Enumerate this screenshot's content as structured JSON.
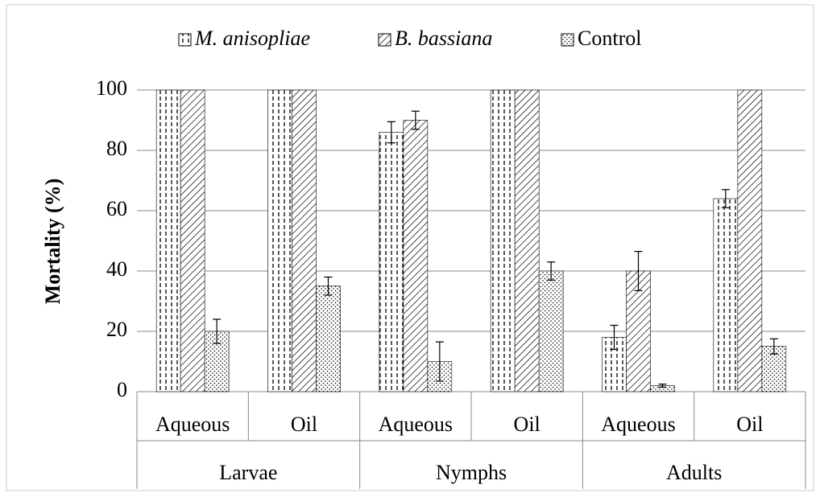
{
  "chart_data": {
    "type": "bar",
    "y_label": "Mortality (%)",
    "categories": [
      "Aqueous",
      "Oil",
      "Aqueous",
      "Oil",
      "Aqueous",
      "Oil"
    ],
    "groups": [
      "Larvae",
      "Nymphs",
      "Adults"
    ],
    "series": [
      {
        "name": "M. anisopliae",
        "color": "#000000",
        "pattern": "vertical-dash",
        "italic": true,
        "values": [
          100,
          100,
          86,
          100,
          18,
          64
        ],
        "errors": [
          null,
          null,
          3.5,
          null,
          4,
          3
        ]
      },
      {
        "name": "B. bassiana",
        "color": "#000000",
        "pattern": "diagonal",
        "italic": true,
        "values": [
          100,
          100,
          90,
          100,
          40,
          100
        ],
        "errors": [
          null,
          null,
          3,
          null,
          6.5,
          null
        ]
      },
      {
        "name": "Control",
        "color": "#000000",
        "pattern": "dots",
        "italic": false,
        "values": [
          20,
          35,
          10,
          40,
          2,
          15
        ],
        "errors": [
          4,
          3,
          6.5,
          3,
          0.5,
          2.5
        ]
      }
    ],
    "ylim": [
      0,
      100
    ],
    "yticks": [
      0,
      20,
      40,
      60,
      80,
      100
    ],
    "grid": true,
    "legend": "top"
  }
}
